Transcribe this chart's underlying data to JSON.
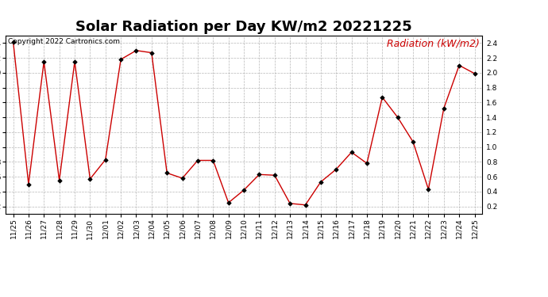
{
  "title": "Solar Radiation per Day KW/m2 20221225",
  "copyright_text": "Copyright 2022 Cartronics.com",
  "legend_label": "Radiation (kW/m2)",
  "dates": [
    "11/25",
    "11/26",
    "11/27",
    "11/28",
    "11/29",
    "11/30",
    "12/01",
    "12/02",
    "12/03",
    "12/04",
    "12/05",
    "12/06",
    "12/07",
    "12/08",
    "12/09",
    "12/10",
    "12/11",
    "12/12",
    "12/13",
    "12/14",
    "12/15",
    "12/16",
    "12/17",
    "12/18",
    "12/19",
    "12/20",
    "12/21",
    "12/22",
    "12/23",
    "12/24",
    "12/25"
  ],
  "values": [
    2.42,
    0.5,
    2.15,
    0.55,
    2.15,
    0.57,
    0.83,
    2.18,
    2.3,
    2.27,
    0.65,
    0.58,
    0.82,
    0.82,
    0.25,
    0.42,
    0.63,
    0.62,
    0.24,
    0.22,
    0.53,
    0.7,
    0.93,
    0.78,
    1.67,
    1.4,
    1.07,
    0.43,
    1.52,
    2.1,
    1.99
  ],
  "line_color": "#cc0000",
  "marker_color": "#000000",
  "title_fontsize": 13,
  "copyright_fontsize": 6.5,
  "legend_fontsize": 9,
  "ylim": [
    0.1,
    2.5
  ],
  "yticks": [
    0.2,
    0.4,
    0.6,
    0.8,
    1.0,
    1.2,
    1.4,
    1.6,
    1.8,
    2.0,
    2.2,
    2.4
  ],
  "background_color": "#ffffff",
  "grid_color": "#aaaaaa",
  "tick_fontsize": 6.5
}
